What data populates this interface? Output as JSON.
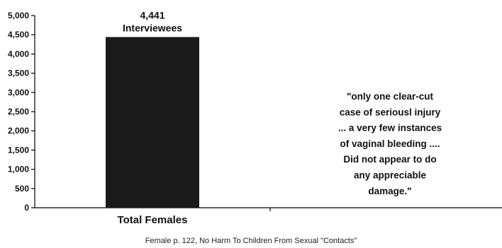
{
  "chart_data": {
    "type": "bar",
    "categories": [
      "Total Females",
      ""
    ],
    "values": [
      4441,
      null
    ],
    "data_labels": [
      "4,441",
      "Interviewees"
    ],
    "ylim": [
      0,
      5000
    ],
    "yticks": [
      0,
      500,
      1000,
      1500,
      2000,
      2500,
      3000,
      3500,
      4000,
      4500,
      5000
    ],
    "ytick_labels": [
      "0",
      "500",
      "1,000",
      "1,500",
      "2,000",
      "2,500",
      "3,000",
      "3,500",
      "4,000",
      "4,500",
      "5,000"
    ],
    "grid": false,
    "bar_color": "#1a1a1a",
    "annotation_lines": [
      "\"only one clear-cut",
      "case of seriousl injury",
      "... a very few instances",
      "of vaginal bleeding ....",
      "Did not appear to do",
      "any appreciable",
      "damage.\""
    ],
    "caption": "Female p. 122, No Harm To Children From Sexual \"Contacts\""
  }
}
